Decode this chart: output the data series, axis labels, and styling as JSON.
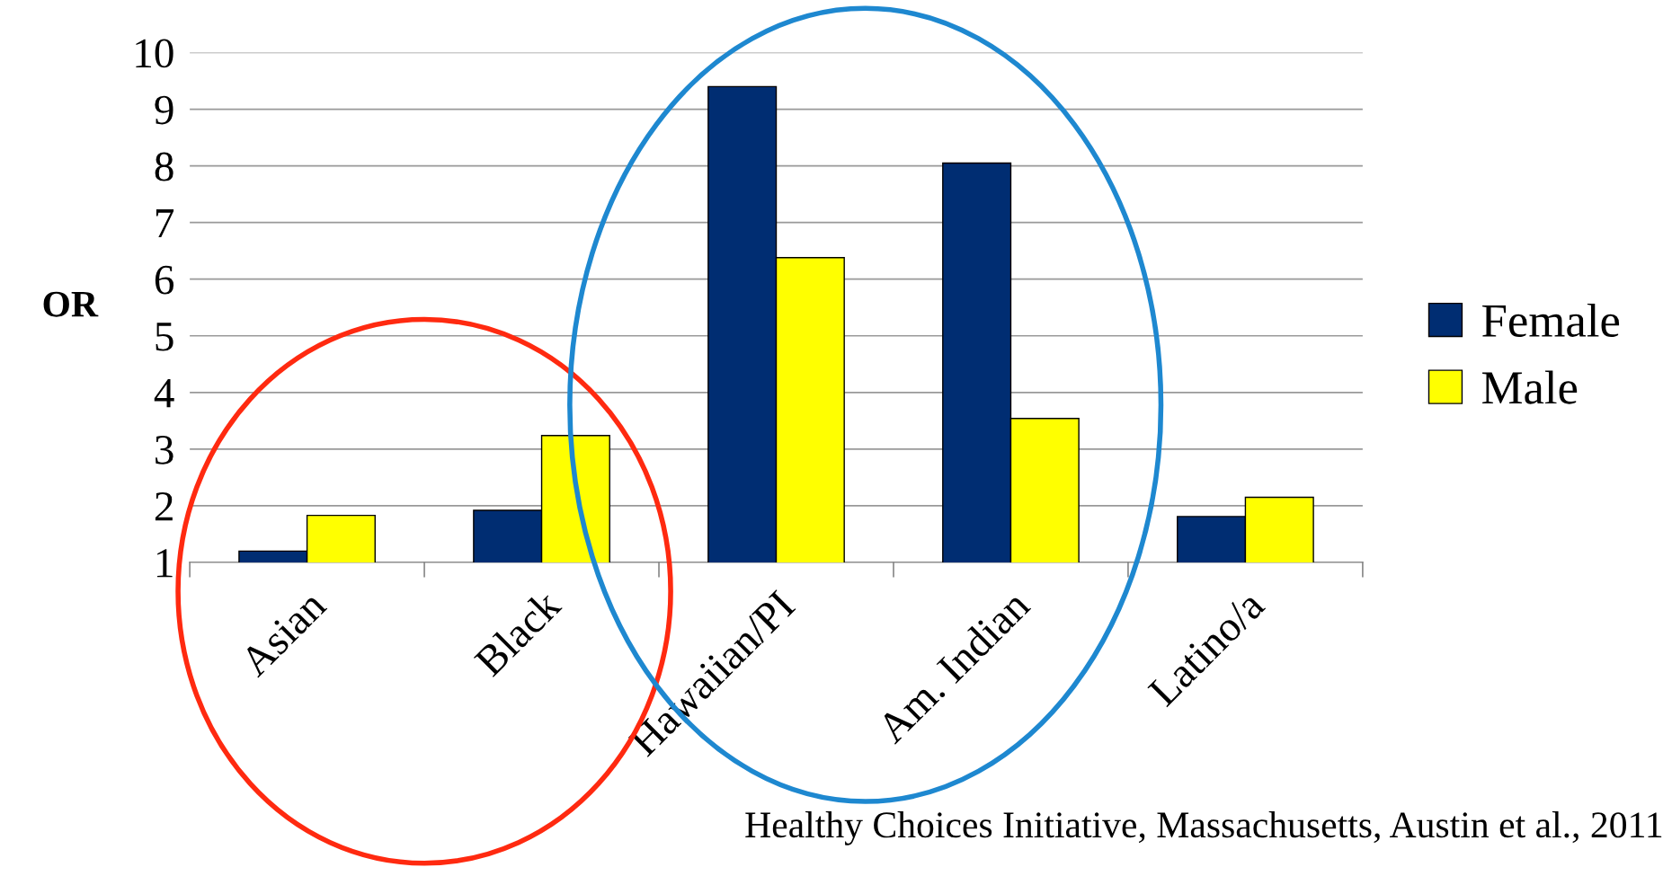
{
  "chart_data": {
    "type": "bar",
    "ylabel": "OR",
    "categories": [
      "Asian",
      "Black",
      "Hawaiian/PI",
      "Am. Indian",
      "Latino/a"
    ],
    "series": [
      {
        "name": "Female",
        "color": "#002d72",
        "values": [
          1.2,
          1.92,
          9.4,
          8.05,
          1.81
        ]
      },
      {
        "name": "Male",
        "color": "#ffff00",
        "values": [
          1.83,
          3.24,
          6.38,
          3.54,
          2.15
        ]
      }
    ],
    "ylim": [
      1,
      10
    ],
    "yticks": [
      1,
      2,
      3,
      4,
      5,
      6,
      7,
      8,
      9,
      10
    ],
    "grid": "y",
    "legend": "right",
    "annotations": [
      "Healthy Choices Initiative, Massachusetts, Austin et al., 2011"
    ]
  }
}
